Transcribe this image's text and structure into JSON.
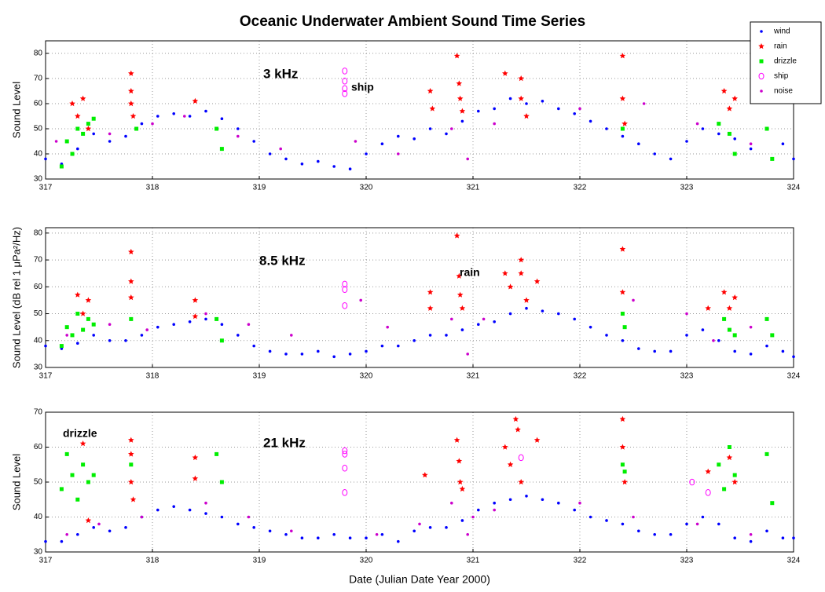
{
  "chart_data": [
    {
      "type": "scatter",
      "title": "Oceanic Underwater Ambient Sound Time Series",
      "ylabel": "Sound Level",
      "annotations": [
        "3 kHz",
        "ship"
      ],
      "xlim": [
        317,
        324
      ],
      "xticks": [
        317,
        318,
        319,
        320,
        321,
        322,
        323,
        324
      ],
      "ylim": [
        30,
        85
      ],
      "yticks": [
        30,
        40,
        50,
        60,
        70,
        80
      ],
      "grid": true,
      "legend": "upper right",
      "series": [
        {
          "name": "wind",
          "color": "#0000ff",
          "marker": "dot",
          "x": [
            317.0,
            317.15,
            317.3,
            317.45,
            317.6,
            317.75,
            317.9,
            318.05,
            318.2,
            318.35,
            318.5,
            318.65,
            318.8,
            318.95,
            319.1,
            319.25,
            319.4,
            319.55,
            319.7,
            319.85,
            320.0,
            320.15,
            320.3,
            320.45,
            320.6,
            320.75,
            320.9,
            321.05,
            321.2,
            321.35,
            321.5,
            321.65,
            321.8,
            321.95,
            322.1,
            322.25,
            322.4,
            322.55,
            322.7,
            322.85,
            323.0,
            323.15,
            323.3,
            323.45,
            323.6,
            323.75,
            323.9,
            324.0
          ],
          "values": [
            38,
            36,
            42,
            48,
            45,
            47,
            52,
            55,
            56,
            55,
            57,
            54,
            50,
            45,
            40,
            38,
            36,
            37,
            35,
            34,
            40,
            44,
            47,
            46,
            50,
            48,
            53,
            57,
            58,
            62,
            60,
            61,
            58,
            56,
            53,
            50,
            47,
            44,
            40,
            38,
            45,
            50,
            48,
            46,
            42,
            50,
            44,
            38
          ]
        },
        {
          "name": "rain",
          "color": "#ff0000",
          "marker": "star",
          "x": [
            317.25,
            317.3,
            317.35,
            317.4,
            317.8,
            317.8,
            317.8,
            317.82,
            318.4,
            320.6,
            320.62,
            320.85,
            320.87,
            320.88,
            320.9,
            321.3,
            321.45,
            321.45,
            321.5,
            322.4,
            322.4,
            322.42,
            323.35,
            323.4,
            323.45
          ],
          "values": [
            60,
            55,
            62,
            50,
            72,
            65,
            60,
            55,
            61,
            65,
            58,
            79,
            68,
            62,
            57,
            72,
            70,
            62,
            55,
            79,
            62,
            52,
            65,
            58,
            62
          ]
        },
        {
          "name": "drizzle",
          "color": "#00ee00",
          "marker": "square",
          "x": [
            317.15,
            317.2,
            317.25,
            317.3,
            317.35,
            317.4,
            317.45,
            317.85,
            318.6,
            318.65,
            322.4,
            323.3,
            323.4,
            323.45,
            323.75,
            323.8
          ],
          "values": [
            35,
            45,
            40,
            50,
            48,
            52,
            54,
            50,
            50,
            42,
            50,
            52,
            48,
            40,
            50,
            38
          ]
        },
        {
          "name": "ship",
          "color": "#ff00ff",
          "marker": "circle",
          "x": [
            319.8,
            319.8,
            319.8,
            319.8
          ],
          "values": [
            73,
            69,
            66,
            64
          ]
        },
        {
          "name": "noise",
          "color": "#cc00cc",
          "marker": "dot",
          "x": [
            317.1,
            317.6,
            318.0,
            318.3,
            318.8,
            319.2,
            319.9,
            320.3,
            320.8,
            320.95,
            321.2,
            322.0,
            322.6,
            323.1,
            323.6
          ],
          "values": [
            45,
            48,
            52,
            55,
            47,
            42,
            45,
            40,
            50,
            38,
            52,
            58,
            60,
            52,
            44
          ]
        }
      ]
    },
    {
      "type": "scatter",
      "ylabel": "Sound Level (dB rel 1 μPa²/Hz)",
      "annotations": [
        "8.5 kHz",
        "rain"
      ],
      "xlim": [
        317,
        324
      ],
      "xticks": [
        317,
        318,
        319,
        320,
        321,
        322,
        323,
        324
      ],
      "ylim": [
        30,
        82
      ],
      "yticks": [
        30,
        40,
        50,
        60,
        70,
        80
      ],
      "grid": true,
      "series": [
        {
          "name": "wind",
          "color": "#0000ff",
          "marker": "dot",
          "x": [
            317.0,
            317.15,
            317.3,
            317.45,
            317.6,
            317.75,
            317.9,
            318.05,
            318.2,
            318.35,
            318.5,
            318.65,
            318.8,
            318.95,
            319.1,
            319.25,
            319.4,
            319.55,
            319.7,
            319.85,
            320.0,
            320.15,
            320.3,
            320.45,
            320.6,
            320.75,
            320.9,
            321.05,
            321.2,
            321.35,
            321.5,
            321.65,
            321.8,
            321.95,
            322.1,
            322.25,
            322.4,
            322.55,
            322.7,
            322.85,
            323.0,
            323.15,
            323.3,
            323.45,
            323.6,
            323.75,
            323.9,
            324.0
          ],
          "values": [
            38,
            37,
            39,
            42,
            40,
            40,
            42,
            45,
            46,
            47,
            48,
            46,
            42,
            38,
            36,
            35,
            35,
            36,
            34,
            35,
            36,
            38,
            38,
            40,
            42,
            42,
            44,
            46,
            47,
            50,
            52,
            51,
            50,
            48,
            45,
            42,
            40,
            37,
            36,
            36,
            42,
            44,
            40,
            36,
            35,
            38,
            36,
            34
          ]
        },
        {
          "name": "rain",
          "color": "#ff0000",
          "marker": "star",
          "x": [
            317.3,
            317.35,
            317.4,
            317.8,
            317.8,
            317.8,
            318.4,
            318.4,
            320.6,
            320.6,
            320.85,
            320.87,
            320.88,
            320.9,
            321.3,
            321.35,
            321.45,
            321.45,
            321.5,
            321.6,
            322.4,
            322.4,
            323.2,
            323.35,
            323.4,
            323.45
          ],
          "values": [
            57,
            50,
            55,
            73,
            62,
            56,
            55,
            49,
            58,
            52,
            79,
            64,
            57,
            52,
            65,
            60,
            70,
            65,
            55,
            62,
            74,
            58,
            52,
            58,
            52,
            56
          ]
        },
        {
          "name": "drizzle",
          "color": "#00ee00",
          "marker": "square",
          "x": [
            317.15,
            317.2,
            317.25,
            317.3,
            317.35,
            317.4,
            317.45,
            317.8,
            318.6,
            318.65,
            322.4,
            322.42,
            323.35,
            323.4,
            323.45,
            323.75,
            323.8
          ],
          "values": [
            38,
            45,
            42,
            50,
            44,
            48,
            46,
            48,
            48,
            40,
            50,
            45,
            48,
            44,
            42,
            48,
            42
          ]
        },
        {
          "name": "ship",
          "color": "#ff00ff",
          "marker": "circle",
          "x": [
            319.8,
            319.8,
            319.8
          ],
          "values": [
            61,
            59,
            53
          ]
        },
        {
          "name": "noise",
          "color": "#cc00cc",
          "marker": "dot",
          "x": [
            317.2,
            317.6,
            317.95,
            318.5,
            318.9,
            319.3,
            319.95,
            320.2,
            320.8,
            320.95,
            321.1,
            322.5,
            323.0,
            323.25,
            323.6
          ],
          "values": [
            42,
            46,
            44,
            50,
            46,
            42,
            55,
            45,
            48,
            35,
            48,
            55,
            50,
            40,
            45
          ]
        }
      ]
    },
    {
      "type": "scatter",
      "ylabel": "Sound Level",
      "xlabel": "Date (Julian Date Year 2000)",
      "annotations": [
        "21 kHz",
        "drizzle"
      ],
      "xlim": [
        317,
        324
      ],
      "xticks": [
        317,
        318,
        319,
        320,
        321,
        322,
        323,
        324
      ],
      "ylim": [
        30,
        70
      ],
      "yticks": [
        30,
        40,
        50,
        60,
        70
      ],
      "grid": true,
      "series": [
        {
          "name": "wind",
          "color": "#0000ff",
          "marker": "dot",
          "x": [
            317.0,
            317.15,
            317.3,
            317.45,
            317.6,
            317.75,
            317.9,
            318.05,
            318.2,
            318.35,
            318.5,
            318.65,
            318.8,
            318.95,
            319.1,
            319.25,
            319.4,
            319.55,
            319.7,
            319.85,
            320.0,
            320.15,
            320.3,
            320.45,
            320.6,
            320.75,
            320.9,
            321.05,
            321.2,
            321.35,
            321.5,
            321.65,
            321.8,
            321.95,
            322.1,
            322.25,
            322.4,
            322.55,
            322.7,
            322.85,
            323.0,
            323.15,
            323.3,
            323.45,
            323.6,
            323.75,
            323.9,
            324.0
          ],
          "values": [
            33,
            33,
            35,
            37,
            36,
            37,
            40,
            42,
            43,
            42,
            41,
            40,
            38,
            37,
            36,
            35,
            34,
            34,
            35,
            34,
            34,
            35,
            33,
            36,
            37,
            37,
            39,
            42,
            44,
            45,
            46,
            45,
            44,
            42,
            40,
            39,
            38,
            36,
            35,
            35,
            38,
            40,
            38,
            34,
            33,
            36,
            34,
            34
          ]
        },
        {
          "name": "rain",
          "color": "#ff0000",
          "marker": "star",
          "x": [
            317.35,
            317.4,
            317.8,
            317.8,
            317.8,
            317.82,
            318.4,
            318.4,
            320.55,
            320.85,
            320.87,
            320.88,
            320.9,
            321.3,
            321.35,
            321.4,
            321.42,
            321.45,
            321.6,
            322.4,
            322.4,
            322.42,
            323.2,
            323.4,
            323.45
          ],
          "values": [
            61,
            39,
            62,
            58,
            50,
            45,
            57,
            51,
            52,
            62,
            56,
            50,
            48,
            60,
            55,
            68,
            65,
            50,
            62,
            68,
            60,
            50,
            53,
            57,
            50
          ]
        },
        {
          "name": "drizzle",
          "color": "#00ee00",
          "marker": "square",
          "x": [
            317.15,
            317.2,
            317.25,
            317.3,
            317.35,
            317.4,
            317.45,
            317.8,
            318.6,
            318.65,
            322.4,
            322.42,
            323.3,
            323.35,
            323.4,
            323.45,
            323.75,
            323.8
          ],
          "values": [
            48,
            58,
            52,
            45,
            55,
            50,
            52,
            55,
            58,
            50,
            55,
            53,
            55,
            48,
            60,
            52,
            58,
            44
          ]
        },
        {
          "name": "ship",
          "color": "#ff00ff",
          "marker": "circle",
          "x": [
            319.8,
            319.8,
            319.8,
            319.8,
            321.45,
            323.05,
            323.2
          ],
          "values": [
            59,
            54,
            47,
            58,
            57,
            50,
            47
          ]
        },
        {
          "name": "noise",
          "color": "#cc00cc",
          "marker": "dot",
          "x": [
            317.2,
            317.5,
            317.9,
            318.5,
            318.9,
            319.3,
            320.1,
            320.5,
            320.8,
            320.95,
            321.0,
            321.2,
            322.0,
            322.5,
            323.1,
            323.6
          ],
          "values": [
            35,
            38,
            40,
            44,
            40,
            36,
            35,
            38,
            44,
            35,
            40,
            42,
            44,
            40,
            38,
            35
          ]
        }
      ]
    }
  ]
}
